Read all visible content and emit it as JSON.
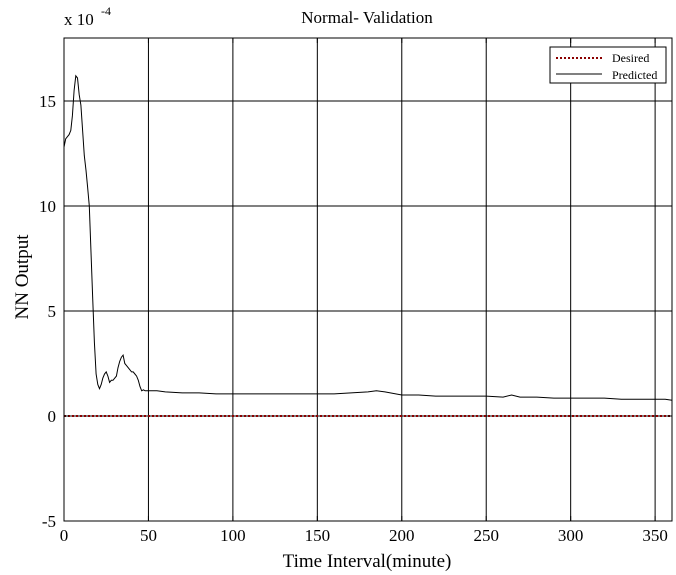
{
  "chart_data": {
    "type": "line",
    "title": "Normal- Validation",
    "xlabel": "Time Interval(minute)",
    "ylabel": "NN Output",
    "y_multiplier": {
      "base": "x 10",
      "exponent": "-4"
    },
    "xlim": [
      0,
      360
    ],
    "ylim": [
      -5,
      18
    ],
    "xticks": [
      0,
      50,
      100,
      150,
      200,
      250,
      300,
      350
    ],
    "yticks": [
      -5,
      0,
      5,
      10,
      15
    ],
    "grid": true,
    "legend_position": "top-right",
    "series": [
      {
        "name": "Desired",
        "style": "dotted",
        "color": "#8b0000",
        "x": [
          0,
          360
        ],
        "y": [
          0,
          0
        ]
      },
      {
        "name": "Predicted",
        "style": "solid",
        "color": "#000000",
        "x": [
          0,
          1,
          2,
          3,
          4,
          5,
          6,
          7,
          8,
          9,
          10,
          11,
          12,
          13,
          14,
          15,
          16,
          17,
          18,
          19,
          20,
          21,
          22,
          23,
          24,
          25,
          26,
          27,
          28,
          29,
          30,
          31,
          32,
          33,
          34,
          35,
          36,
          37,
          38,
          39,
          40,
          41,
          42,
          43,
          44,
          45,
          46,
          47,
          48,
          50,
          55,
          60,
          70,
          80,
          90,
          100,
          110,
          120,
          130,
          140,
          150,
          160,
          170,
          180,
          185,
          190,
          200,
          210,
          220,
          230,
          240,
          250,
          260,
          265,
          270,
          280,
          290,
          300,
          310,
          320,
          330,
          340,
          350,
          356,
          360
        ],
        "y": [
          12.8,
          13.2,
          13.3,
          13.4,
          13.6,
          14.3,
          15.5,
          16.2,
          16.1,
          15.3,
          14.8,
          13.6,
          12.4,
          11.7,
          10.9,
          10.0,
          7.8,
          5.6,
          3.5,
          2.0,
          1.5,
          1.3,
          1.5,
          1.8,
          2.0,
          2.1,
          1.9,
          1.6,
          1.7,
          1.7,
          1.8,
          1.9,
          2.3,
          2.6,
          2.8,
          2.9,
          2.5,
          2.4,
          2.3,
          2.2,
          2.1,
          2.1,
          2.0,
          1.9,
          1.7,
          1.4,
          1.2,
          1.25,
          1.2,
          1.2,
          1.2,
          1.15,
          1.1,
          1.1,
          1.05,
          1.05,
          1.05,
          1.05,
          1.05,
          1.05,
          1.05,
          1.05,
          1.1,
          1.15,
          1.2,
          1.15,
          1.0,
          1.0,
          0.95,
          0.95,
          0.95,
          0.95,
          0.9,
          1.0,
          0.9,
          0.9,
          0.85,
          0.85,
          0.85,
          0.85,
          0.8,
          0.8,
          0.8,
          0.8,
          0.75
        ]
      }
    ]
  }
}
